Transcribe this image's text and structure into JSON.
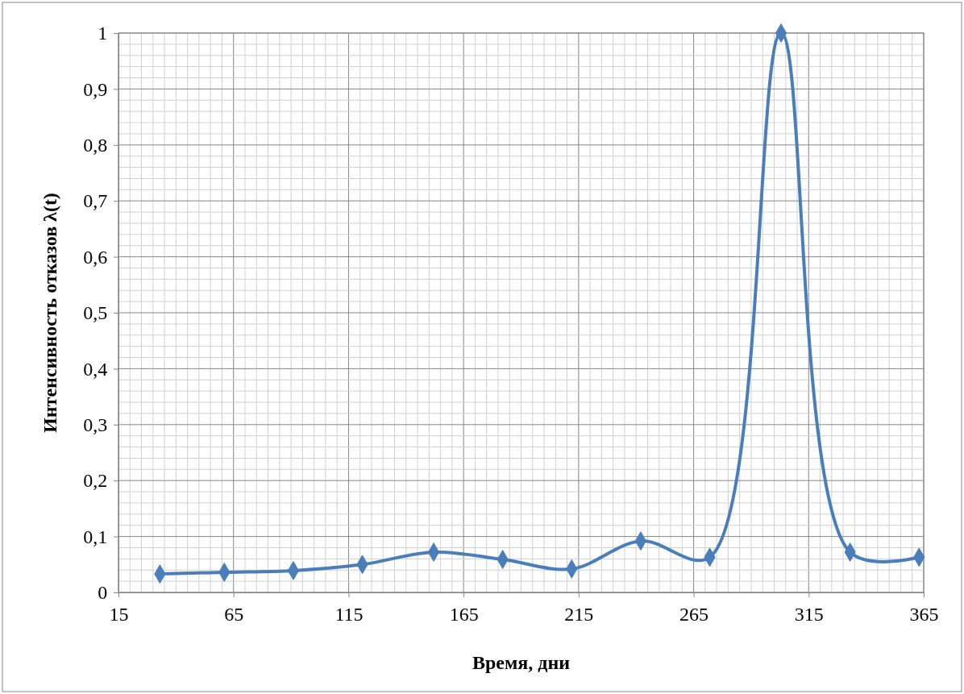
{
  "chart_data": {
    "type": "line",
    "xlabel": "Время, дни",
    "ylabel": "Интенсивность отказов λ(t)",
    "x": [
      33,
      61,
      91,
      121,
      152,
      182,
      212,
      242,
      272,
      303,
      333,
      363
    ],
    "series": [
      {
        "color": "#4a7ebb",
        "values": [
          0.033,
          0.036,
          0.039,
          0.05,
          0.072,
          0.059,
          0.042,
          0.092,
          0.063,
          1.0,
          0.072,
          0.063
        ]
      }
    ],
    "xlim": [
      15,
      365
    ],
    "xticks": [
      15,
      65,
      115,
      165,
      215,
      265,
      315,
      365
    ],
    "ylim": [
      0,
      1
    ],
    "yticks": [
      0,
      {
        "value": 0.1,
        "label": "0,1"
      },
      {
        "value": 0.2,
        "label": "0,2"
      },
      {
        "value": 0.3,
        "label": "0,3"
      },
      {
        "value": 0.4,
        "label": "0,4"
      },
      {
        "value": 0.5,
        "label": "0,5"
      },
      {
        "value": 0.6,
        "label": "0,6"
      },
      {
        "value": 0.7,
        "label": "0,7"
      },
      {
        "value": 0.8,
        "label": "0,8"
      },
      {
        "value": 0.9,
        "label": "0,9"
      },
      1
    ],
    "grid": true,
    "marker": "diamond",
    "line_style": "solid"
  }
}
